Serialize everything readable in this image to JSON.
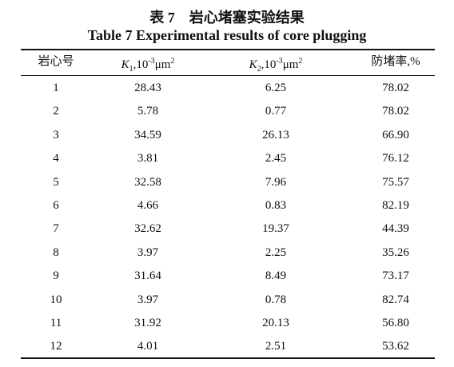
{
  "title": {
    "cn": "表 7　岩心堵塞实验结果",
    "en": "Table 7 Experimental results of core plugging"
  },
  "table": {
    "headers": [
      "岩心号",
      [
        "K",
        "1",
        ",10",
        "-3",
        "μm",
        "2"
      ],
      [
        "K",
        "2",
        ",10",
        "-3",
        "μm",
        "2"
      ],
      "防堵率,%"
    ],
    "rows": [
      [
        "1",
        "28.43",
        "6.25",
        "78.02"
      ],
      [
        "2",
        "5.78",
        "0.77",
        "78.02"
      ],
      [
        "3",
        "34.59",
        "26.13",
        "66.90"
      ],
      [
        "4",
        "3.81",
        "2.45",
        "76.12"
      ],
      [
        "5",
        "32.58",
        "7.96",
        "75.57"
      ],
      [
        "6",
        "4.66",
        "0.83",
        "82.19"
      ],
      [
        "7",
        "32.62",
        "19.37",
        "44.39"
      ],
      [
        "8",
        "3.97",
        "2.25",
        "35.26"
      ],
      [
        "9",
        "31.64",
        "8.49",
        "73.17"
      ],
      [
        "10",
        "3.97",
        "0.78",
        "82.74"
      ],
      [
        "11",
        "31.92",
        "20.13",
        "56.80"
      ],
      [
        "12",
        "4.01",
        "2.51",
        "53.62"
      ]
    ]
  }
}
